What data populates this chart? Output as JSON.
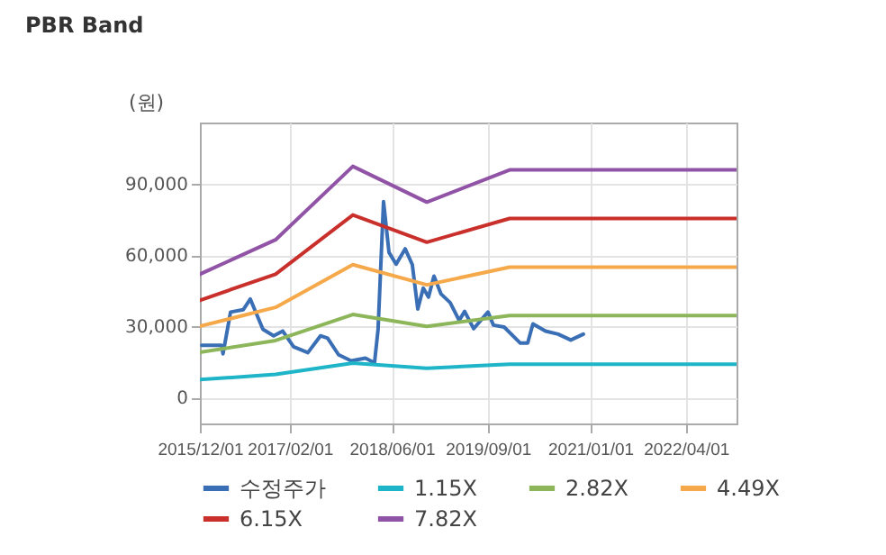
{
  "chart_data": {
    "type": "line",
    "title": "PBR Band",
    "ylabel": "(원)",
    "xlim": [
      "2015-12-01",
      "2022-11-28"
    ],
    "xticks": [
      {
        "value": "2015-12-01",
        "label": "2015/12/01"
      },
      {
        "value": "2017-02-01",
        "label": "2017/02/01"
      },
      {
        "value": "2018-06-01",
        "label": "2018/06/01"
      },
      {
        "value": "2019-09-01",
        "label": "2019/09/01"
      },
      {
        "value": "2021-01-01",
        "label": "2021/01/01"
      },
      {
        "value": "2022-04-01",
        "label": "2022/04/01"
      }
    ],
    "ylim": [
      -11000,
      116000
    ],
    "yticks": [
      {
        "value": 0,
        "label": "0"
      },
      {
        "value": 30000,
        "label": "30,000"
      },
      {
        "value": 60000,
        "label": "60,000"
      },
      {
        "value": 90000,
        "label": "90,000"
      }
    ],
    "grid": true,
    "legend": "bottom",
    "line_style": "solid",
    "marker": "none",
    "series": [
      {
        "name": "수정주가",
        "color": "#3a6eb5",
        "x": [
          "2015-12-10",
          "2016-03-13",
          "2016-03-20",
          "2016-04-25",
          "2016-06-24",
          "2016-07-28",
          "2016-09-26",
          "2016-11-16",
          "2016-12-29",
          "2017-02-19",
          "2017-04-28",
          "2017-06-27",
          "2017-07-31",
          "2017-09-21",
          "2017-11-20",
          "2018-01-27",
          "2018-03-11",
          "2018-03-28",
          "2018-04-23",
          "2018-05-19",
          "2018-06-22",
          "2018-08-04",
          "2018-09-07",
          "2018-10-03",
          "2018-10-29",
          "2018-11-23",
          "2018-12-19",
          "2019-01-22",
          "2019-03-06",
          "2019-04-18",
          "2019-05-14",
          "2019-06-26",
          "2019-09-02",
          "2019-09-28",
          "2019-11-18",
          "2020-02-03",
          "2020-03-09",
          "2020-04-03",
          "2020-06-02",
          "2020-08-01",
          "2020-09-30",
          "2020-11-29"
        ],
        "values": [
          22000,
          22000,
          18400,
          36000,
          37000,
          41500,
          28700,
          26000,
          28000,
          21400,
          18900,
          26000,
          25000,
          18000,
          15400,
          16600,
          14600,
          28700,
          82600,
          61200,
          56200,
          62700,
          56000,
          37300,
          46100,
          42300,
          51200,
          43600,
          40000,
          32500,
          36300,
          29000,
          36000,
          30500,
          29700,
          22900,
          22900,
          31000,
          28000,
          26700,
          24200,
          26700
        ]
      },
      {
        "name": "1.15X",
        "color": "#1fb5c8",
        "x": [
          "2015-12-01",
          "2016-11-25",
          "2017-11-28",
          "2018-11-15",
          "2019-12-14",
          "2022-11-28"
        ],
        "values": [
          7500,
          9700,
          14500,
          12300,
          14000,
          14000
        ]
      },
      {
        "name": "2.82X",
        "color": "#8db65a",
        "x": [
          "2015-12-01",
          "2016-11-25",
          "2017-11-28",
          "2018-11-15",
          "2019-12-14",
          "2022-11-28"
        ],
        "values": [
          19000,
          24000,
          35000,
          30000,
          34500,
          34500
        ]
      },
      {
        "name": "4.49X",
        "color": "#f5a94a",
        "x": [
          "2015-12-01",
          "2016-11-25",
          "2017-11-28",
          "2018-11-15",
          "2019-12-14",
          "2022-11-28"
        ],
        "values": [
          30000,
          38000,
          56000,
          47500,
          55000,
          55000
        ]
      },
      {
        "name": "6.15X",
        "color": "#c9302c",
        "x": [
          "2015-12-01",
          "2016-11-25",
          "2017-11-28",
          "2018-11-15",
          "2019-12-14",
          "2022-11-28"
        ],
        "values": [
          41000,
          52000,
          77000,
          65500,
          75500,
          75500
        ]
      },
      {
        "name": "7.82X",
        "color": "#9053a6",
        "x": [
          "2015-12-01",
          "2016-11-25",
          "2017-11-28",
          "2018-11-15",
          "2019-12-14",
          "2022-11-28"
        ],
        "values": [
          52000,
          66500,
          97500,
          82400,
          96000,
          96000
        ]
      }
    ]
  }
}
